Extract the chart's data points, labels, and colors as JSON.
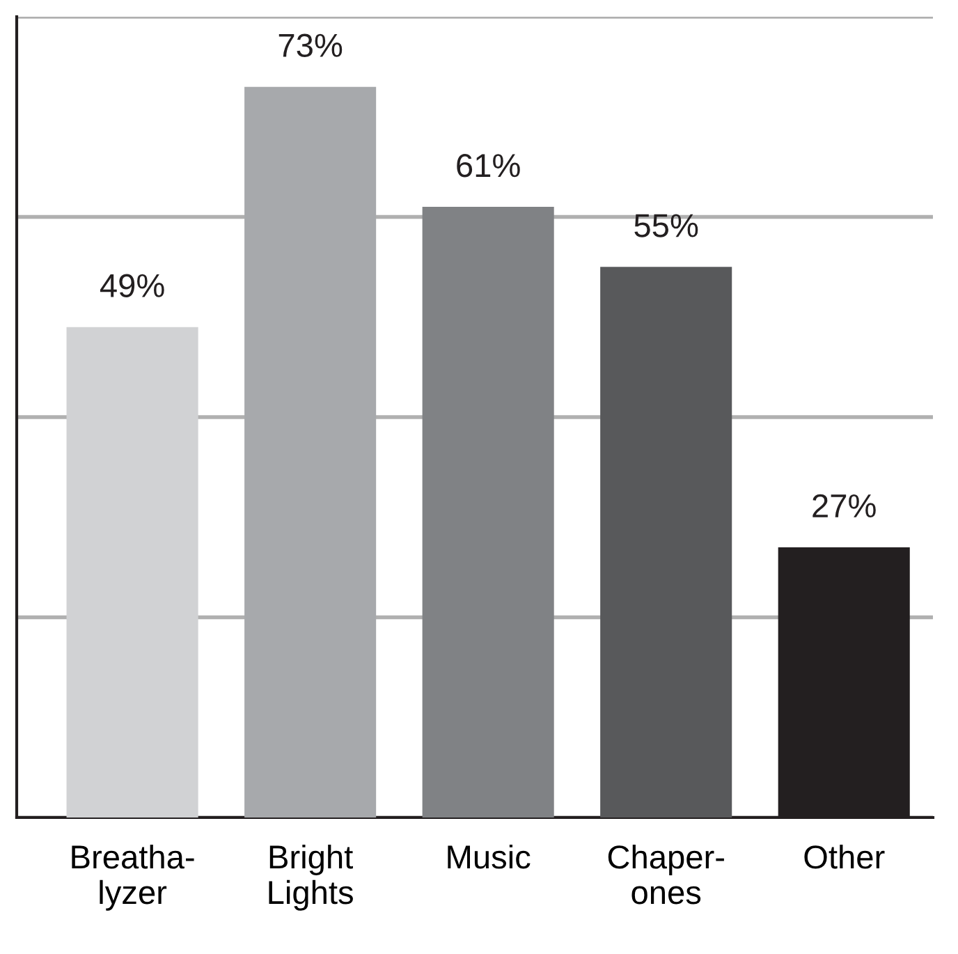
{
  "chart_data": {
    "type": "bar",
    "categories": [
      "Breatha-\nlyzer",
      "Bright\nLights",
      "Music",
      "Chaper-\nones",
      "Other"
    ],
    "values": [
      49,
      73,
      61,
      55,
      27
    ],
    "colors": [
      "#d1d2d4",
      "#a7a9ac",
      "#808285",
      "#58595b",
      "#231f20"
    ],
    "ylim": [
      0,
      80
    ],
    "yticks": [
      {
        "value": 0,
        "label": null
      },
      {
        "value": 20,
        "label": null
      },
      {
        "value": 40,
        "label": null
      },
      {
        "value": 60,
        "label": null
      },
      {
        "value": 80,
        "label": null
      }
    ],
    "value_labels": [
      "49%",
      "73%",
      "61%",
      "55%",
      "27%"
    ],
    "grid": "y",
    "tick_labels": "x",
    "legend": false
  }
}
